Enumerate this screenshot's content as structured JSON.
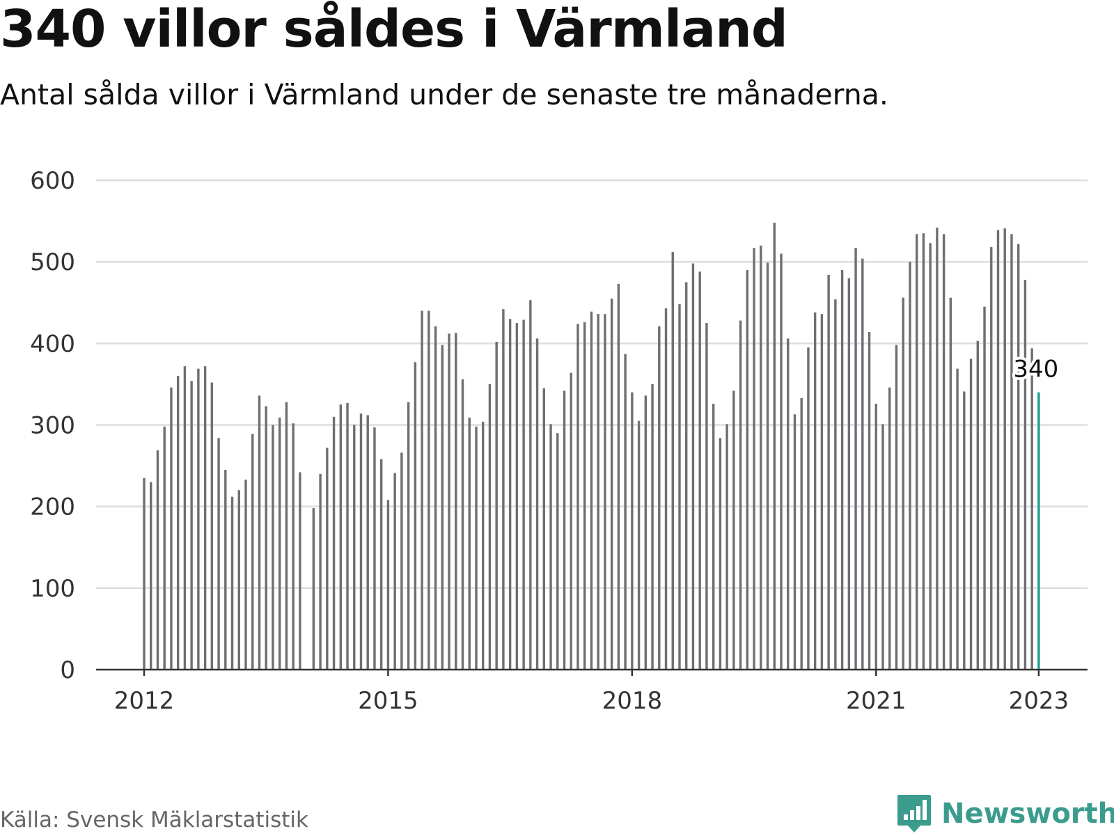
{
  "title": "340 villor såldes i Värmland",
  "subtitle": "Antal sålda villor i Värmland under de senaste tre månaderna.",
  "source": "Källa: Svensk Mäklarstatistik",
  "brand": {
    "name": "Newsworthy",
    "icon": "newsworthy-logo-icon"
  },
  "colors": {
    "bar": "#6e6e73",
    "highlight": "#1a9e8f",
    "grid": "#dddddd",
    "axis": "#333333",
    "brand": "#3b9c8e"
  },
  "chart_data": {
    "type": "bar",
    "title": "340 villor såldes i Värmland",
    "subtitle": "Antal sålda villor i Värmland under de senaste tre månaderna.",
    "xlabel": "",
    "ylabel": "",
    "ylim": [
      0,
      600
    ],
    "yticks": [
      0,
      100,
      200,
      300,
      400,
      500,
      600
    ],
    "xticks": [
      "2012",
      "2015",
      "2018",
      "2021",
      "2023"
    ],
    "xtick_positions": [
      0,
      36,
      72,
      108,
      132
    ],
    "grid": true,
    "highlight": {
      "index": 132,
      "label": "340"
    },
    "values": [
      235,
      230,
      269,
      298,
      346,
      360,
      372,
      354,
      369,
      372,
      352,
      284,
      245,
      212,
      220,
      233,
      289,
      336,
      323,
      300,
      309,
      328,
      302,
      242,
      null,
      198,
      240,
      272,
      310,
      325,
      327,
      300,
      314,
      312,
      297,
      258,
      208,
      241,
      266,
      328,
      377,
      440,
      440,
      421,
      398,
      412,
      413,
      356,
      309,
      298,
      304,
      350,
      402,
      442,
      430,
      425,
      429,
      453,
      406,
      345,
      301,
      290,
      342,
      364,
      424,
      426,
      439,
      436,
      436,
      455,
      473,
      387,
      340,
      305,
      336,
      350,
      421,
      443,
      512,
      448,
      475,
      498,
      488,
      425,
      326,
      284,
      301,
      342,
      428,
      490,
      517,
      520,
      499,
      548,
      510,
      406,
      313,
      333,
      395,
      438,
      436,
      484,
      454,
      490,
      480,
      517,
      504,
      414,
      326,
      301,
      346,
      398,
      456,
      500,
      534,
      535,
      523,
      542,
      534,
      456,
      369,
      341,
      381,
      403,
      445,
      518,
      539,
      541,
      534,
      522,
      478,
      394,
      340
    ]
  }
}
